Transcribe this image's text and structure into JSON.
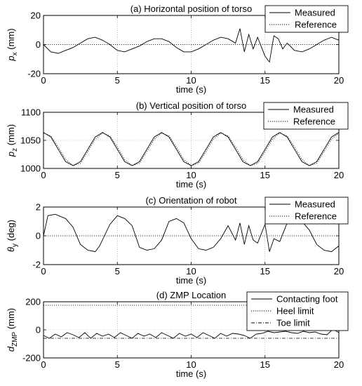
{
  "chart_data": [
    {
      "type": "line",
      "title": "(a) Horizontal position of torso",
      "xlabel": "time (s)",
      "ylabel_main": "p",
      "ylabel_sub": "x",
      "ylabel_unit": " (mm)",
      "xlim": [
        0,
        20
      ],
      "ylim": [
        -20,
        20
      ],
      "xticks": [
        0,
        5,
        10,
        15,
        20
      ],
      "yticks": [
        -20,
        0,
        20
      ],
      "grid": true,
      "legend_position": "top-right",
      "series": [
        {
          "name": "Measured",
          "style": "solid",
          "x": [
            0,
            0.5,
            1,
            1.5,
            2,
            2.5,
            3,
            3.5,
            4,
            4.5,
            5,
            5.5,
            6,
            6.5,
            7,
            7.5,
            8,
            8.5,
            9,
            9.5,
            10,
            10.5,
            11,
            11.5,
            12,
            12.5,
            13,
            13.3,
            13.6,
            13.9,
            14.2,
            14.5,
            15,
            15.3,
            15.6,
            15.9,
            16.2,
            16.5,
            17,
            17.5,
            18,
            18.5,
            19,
            19.5,
            20
          ],
          "y": [
            0,
            -5,
            -6,
            -4,
            -2,
            1,
            4,
            5,
            3,
            0,
            -4,
            -5,
            -3,
            -1,
            2,
            4,
            4,
            2,
            -2,
            -5,
            -5,
            -3,
            0,
            3,
            5,
            4,
            1,
            11,
            -5,
            7,
            -3,
            5,
            -8,
            -12,
            6,
            4,
            -3,
            1,
            -4,
            -5,
            -3,
            0,
            3,
            5,
            3
          ]
        },
        {
          "name": "Reference",
          "style": "dotted",
          "x": [
            0,
            20
          ],
          "y": [
            0,
            0
          ]
        }
      ]
    },
    {
      "type": "line",
      "title": "(b) Vertical position of torso",
      "xlabel": "time (s)",
      "ylabel_main": "p",
      "ylabel_sub": "z",
      "ylabel_unit": " (mm)",
      "xlim": [
        0,
        20
      ],
      "ylim": [
        1000,
        1100
      ],
      "xticks": [
        0,
        5,
        10,
        15,
        20
      ],
      "yticks": [
        1000,
        1050,
        1100
      ],
      "grid": true,
      "legend_position": "top-right",
      "series": [
        {
          "name": "Measured",
          "style": "solid",
          "x": [
            0,
            0.5,
            1,
            1.5,
            2,
            2.5,
            3,
            3.5,
            4,
            4.5,
            5,
            5.5,
            6,
            6.5,
            7,
            7.5,
            8,
            8.5,
            9,
            9.5,
            10,
            10.5,
            11,
            11.5,
            12,
            12.5,
            13,
            13.5,
            14,
            14.5,
            15,
            15.5,
            16,
            16.5,
            17,
            17.5,
            18,
            18.5,
            19,
            19.5,
            20
          ],
          "y": [
            1064,
            1056,
            1034,
            1012,
            1005,
            1012,
            1034,
            1056,
            1064,
            1056,
            1034,
            1012,
            1005,
            1012,
            1034,
            1056,
            1064,
            1056,
            1034,
            1012,
            1005,
            1012,
            1034,
            1056,
            1064,
            1056,
            1034,
            1012,
            1005,
            1012,
            1034,
            1056,
            1064,
            1056,
            1034,
            1012,
            1005,
            1012,
            1034,
            1056,
            1064
          ]
        },
        {
          "name": "Reference",
          "style": "dotted",
          "x": [
            0,
            0.5,
            1,
            1.5,
            2,
            2.5,
            3,
            3.5,
            4,
            4.5,
            5,
            5.5,
            6,
            6.5,
            7,
            7.5,
            8,
            8.5,
            9,
            9.5,
            10,
            10.5,
            11,
            11.5,
            12,
            12.5,
            13,
            13.5,
            14,
            14.5,
            15,
            15.5,
            16,
            16.5,
            17,
            17.5,
            18,
            18.5,
            19,
            19.5,
            20
          ],
          "y": [
            1063,
            1058,
            1038,
            1016,
            1005,
            1009,
            1030,
            1052,
            1063,
            1058,
            1038,
            1016,
            1005,
            1009,
            1030,
            1052,
            1063,
            1058,
            1038,
            1016,
            1005,
            1009,
            1030,
            1052,
            1063,
            1058,
            1038,
            1016,
            1005,
            1009,
            1030,
            1052,
            1063,
            1058,
            1038,
            1016,
            1005,
            1009,
            1030,
            1052,
            1063
          ]
        }
      ]
    },
    {
      "type": "line",
      "title": "(c) Orientation of robot",
      "xlabel": "time (s)",
      "ylabel_main": "θ",
      "ylabel_sub": "y",
      "ylabel_unit": " (deg)",
      "xlim": [
        0,
        20
      ],
      "ylim": [
        -2,
        2
      ],
      "xticks": [
        0,
        5,
        10,
        15,
        20
      ],
      "yticks": [
        -2,
        0,
        2
      ],
      "grid": true,
      "legend_position": "top-right",
      "series": [
        {
          "name": "Measured",
          "style": "solid",
          "x": [
            0,
            0.3,
            0.8,
            1.5,
            2,
            2.5,
            3,
            3.5,
            3.8,
            4.5,
            5,
            5.5,
            6,
            6.5,
            7,
            7.5,
            8,
            8.5,
            9,
            9.5,
            10,
            10.5,
            11,
            11.5,
            12,
            12.5,
            13,
            13.3,
            13.6,
            13.9,
            14.2,
            14.5,
            15,
            15.3,
            15.6,
            16,
            16.5,
            17,
            17.5,
            18,
            18.5,
            19,
            19.5,
            20
          ],
          "y": [
            0,
            1.4,
            1.5,
            1.2,
            0.6,
            -0.6,
            -1.0,
            -1.1,
            -0.7,
            0.8,
            1.4,
            1.2,
            0.7,
            -0.8,
            -1.0,
            -0.9,
            -0.3,
            1.0,
            1.2,
            0.9,
            -0.2,
            -0.9,
            -1.0,
            -0.8,
            -0.2,
            0.7,
            -0.3,
            0.9,
            -0.6,
            0.7,
            -0.3,
            -0.5,
            0.8,
            -1.1,
            -0.2,
            -0.4,
            0.9,
            1.2,
            1.0,
            0.4,
            -0.6,
            -1.0,
            -1.1,
            -0.7
          ]
        },
        {
          "name": "Reference",
          "style": "dotted",
          "x": [
            0,
            20
          ],
          "y": [
            0,
            0
          ]
        }
      ]
    },
    {
      "type": "line",
      "title": "(d) ZMP Location",
      "xlabel": "time (s)",
      "ylabel_main": "d",
      "ylabel_sub": "ZMP",
      "ylabel_unit": " (mm)",
      "xlim": [
        0,
        20
      ],
      "ylim": [
        -200,
        200
      ],
      "xticks": [
        0,
        5,
        10,
        15,
        20
      ],
      "yticks": [
        -200,
        0,
        200
      ],
      "grid": true,
      "legend_position": "top-right",
      "series": [
        {
          "name": "Contacting foot",
          "style": "solid",
          "x": [
            0,
            0.4,
            0.8,
            1.2,
            1.6,
            2,
            2.4,
            2.8,
            3.2,
            3.6,
            4,
            4.4,
            4.8,
            5.2,
            5.6,
            6,
            6.4,
            6.8,
            7.2,
            7.6,
            8,
            8.4,
            8.8,
            9.2,
            9.6,
            10,
            10.4,
            10.8,
            11.2,
            11.6,
            12,
            12.4,
            12.8,
            13.2,
            13.6,
            14,
            14.4,
            14.8,
            15.2,
            15.6,
            16,
            16.4,
            16.8,
            17.2,
            17.6,
            18,
            18.4,
            18.8,
            19.2,
            19.6,
            20
          ],
          "y": [
            -40,
            -60,
            -30,
            -50,
            -20,
            -35,
            -55,
            -20,
            -60,
            -25,
            -45,
            -30,
            -55,
            -20,
            -40,
            -60,
            -25,
            -45,
            -30,
            -55,
            -20,
            -40,
            -60,
            -25,
            -45,
            -30,
            -55,
            -20,
            -40,
            -60,
            -25,
            -45,
            -25,
            -30,
            -40,
            -60,
            -30,
            -25,
            -10,
            -20,
            -15,
            -10,
            -20,
            -25,
            -10,
            -20,
            -15,
            -30,
            -35,
            5,
            -20
          ]
        },
        {
          "name": "Heel limit",
          "style": "dotted",
          "x": [
            0,
            20
          ],
          "y": [
            175,
            175
          ]
        },
        {
          "name": "Toe limit",
          "style": "dashdot",
          "x": [
            0,
            20
          ],
          "y": [
            -60,
            -60
          ]
        }
      ]
    }
  ]
}
